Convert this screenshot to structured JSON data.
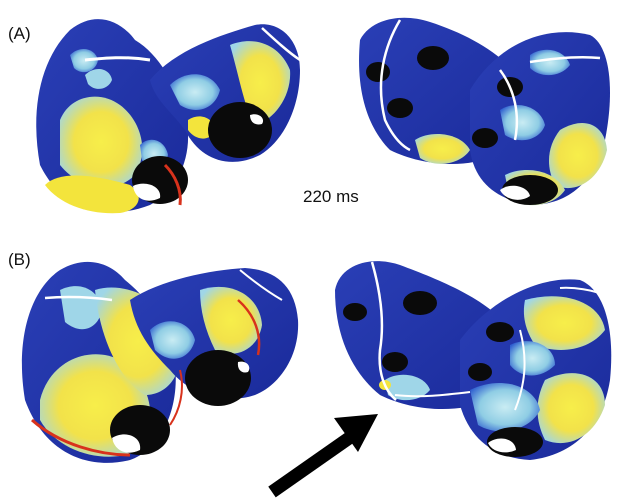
{
  "panels": [
    {
      "label": "(A)"
    },
    {
      "label": "(B)"
    }
  ],
  "time_label": "220 ms",
  "colors": {
    "tissue_dark": "#1a2a9a",
    "tissue_mid": "#2f5fd0",
    "light_blue": "#9fd6e8",
    "yellow": "#f5e63a",
    "red": "#d8321c",
    "vessel": "#0a0a0a",
    "arrow": "#000000"
  },
  "annotations": {
    "arrow_icon": "arrow-icon"
  }
}
